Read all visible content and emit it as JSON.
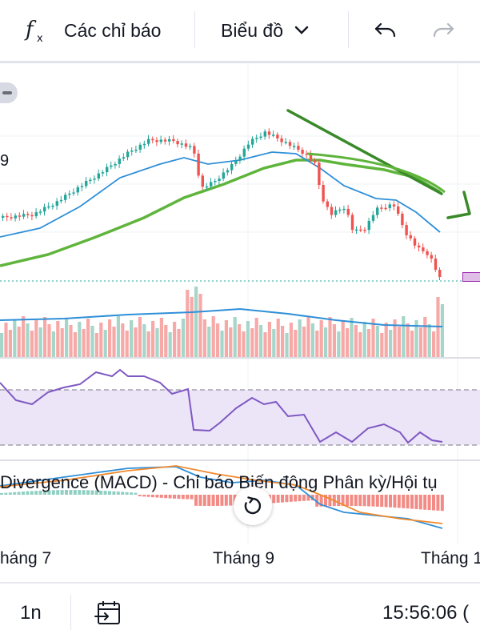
{
  "toolbar": {
    "indicators_label": "Các chỉ báo",
    "chart_type_label": "Biểu đồ"
  },
  "chart": {
    "price_tick_fragment": "9",
    "macd_title": "Divergence (MACD) - Chỉ báo Biến động Phân kỳ/Hội tụ",
    "x_labels": [
      "háng 7",
      "Tháng 9",
      "Tháng 1"
    ],
    "colors": {
      "up": "#26a69a",
      "down": "#ef5350",
      "volume_up": "#a5d6c9",
      "volume_down": "#f7a9a7",
      "ma_short": "#2f8fd8",
      "ma_long": "#5fb53c",
      "rsi_line": "#7e57c2",
      "rsi_band": "#ece5f7",
      "macd_line": "#2f8fd8",
      "signal_line": "#ef8a2f",
      "trend_arrow": "#3a8a2a"
    }
  },
  "bottom_bar": {
    "interval_label": "1n",
    "time_label": "15:56:06 ("
  }
}
